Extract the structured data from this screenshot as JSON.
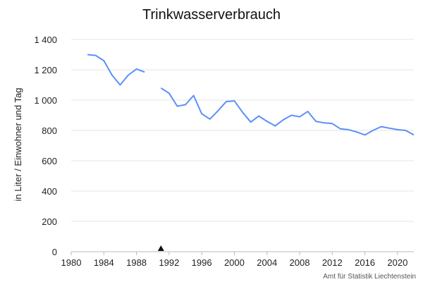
{
  "chart_data": {
    "type": "line",
    "title": "Trinkwasserverbrauch",
    "xlabel": "",
    "ylabel": "in Liter / Einwohner und Tag",
    "xlim": [
      1980,
      2022
    ],
    "ylim": [
      0,
      1400
    ],
    "x_ticks": [
      "1980",
      "1984",
      "1988",
      "1992",
      "1996",
      "2000",
      "2004",
      "2008",
      "2012",
      "2016",
      "2020"
    ],
    "y_ticks": [
      "0",
      "200",
      "400",
      "600",
      "800",
      "1 000",
      "1 200",
      "1 400"
    ],
    "grid": true,
    "line_color": "#5b8ff9",
    "marker_color": "#111111",
    "series": [
      {
        "segments": [
          [
            [
              1982,
              1300
            ],
            [
              1983,
              1295
            ],
            [
              1984,
              1260
            ],
            [
              1985,
              1165
            ],
            [
              1986,
              1100
            ],
            [
              1987,
              1165
            ],
            [
              1988,
              1205
            ],
            [
              1989,
              1185
            ]
          ],
          [
            [
              1991,
              1080
            ],
            [
              1992,
              1045
            ],
            [
              1993,
              960
            ],
            [
              1994,
              970
            ],
            [
              1995,
              1030
            ],
            [
              1996,
              910
            ],
            [
              1997,
              875
            ],
            [
              1998,
              930
            ],
            [
              1999,
              990
            ],
            [
              2000,
              995
            ],
            [
              2001,
              920
            ],
            [
              2002,
              855
            ],
            [
              2003,
              895
            ],
            [
              2004,
              860
            ],
            [
              2005,
              830
            ],
            [
              2006,
              870
            ],
            [
              2007,
              900
            ],
            [
              2008,
              890
            ],
            [
              2009,
              925
            ],
            [
              2010,
              860
            ],
            [
              2011,
              850
            ],
            [
              2012,
              845
            ],
            [
              2013,
              810
            ],
            [
              2014,
              805
            ],
            [
              2015,
              790
            ],
            [
              2016,
              770
            ],
            [
              2017,
              800
            ],
            [
              2018,
              825
            ],
            [
              2019,
              815
            ],
            [
              2020,
              805
            ],
            [
              2021,
              800
            ],
            [
              2022,
              770
            ]
          ]
        ]
      }
    ],
    "markers": [
      {
        "symbol": "▲",
        "x": 1991,
        "y": 0
      }
    ]
  },
  "source": "Amt für Statistik Liechtenstein"
}
